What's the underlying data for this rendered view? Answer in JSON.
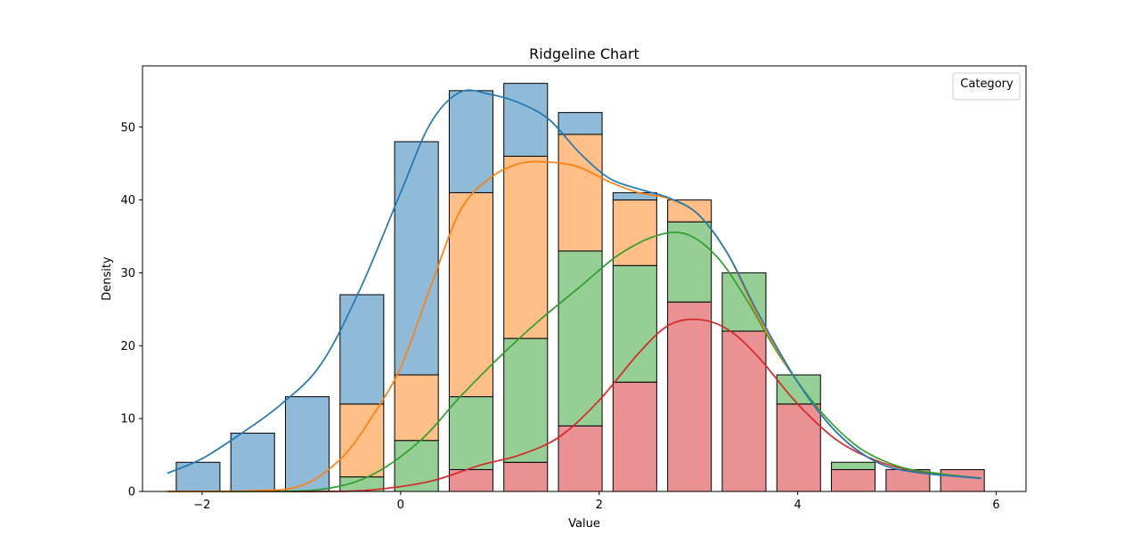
{
  "chart_data": {
    "type": "bar",
    "title": "Ridgeline Chart",
    "xlabel": "Value",
    "ylabel": "Density",
    "xlim": [
      -2.6,
      6.3
    ],
    "ylim": [
      0,
      58.4
    ],
    "xticks": [
      -2,
      0,
      2,
      4,
      6
    ],
    "xtick_labels": [
      "−2",
      "0",
      "2",
      "4",
      "6"
    ],
    "yticks": [
      0,
      10,
      20,
      30,
      40,
      50
    ],
    "ytick_labels": [
      "0",
      "10",
      "20",
      "30",
      "40",
      "50"
    ],
    "legend": {
      "title": "Category",
      "placement": "top-right",
      "entries": []
    },
    "grid": false,
    "stacked": true,
    "bins": {
      "centers": [
        -2.04,
        -1.49,
        -0.94,
        -0.39,
        0.16,
        0.71,
        1.26,
        1.81,
        2.36,
        2.91,
        3.46,
        4.01,
        4.56,
        5.11,
        5.66
      ],
      "width": 0.44
    },
    "series": [
      {
        "color": "#d62728",
        "fill": "#ea9293",
        "values": [
          0,
          0,
          0,
          0,
          0,
          3,
          4,
          9,
          15,
          26,
          22,
          12,
          3,
          3,
          3
        ]
      },
      {
        "color": "#2ca02c",
        "fill": "#95cf95",
        "values": [
          0,
          0,
          0,
          2,
          7,
          10,
          17,
          24,
          16,
          11,
          8,
          4,
          1,
          0,
          0
        ]
      },
      {
        "color": "#ff7f0e",
        "fill": "#ffbf86",
        "values": [
          0,
          0,
          0,
          10,
          9,
          28,
          25,
          16,
          9,
          3,
          0,
          0,
          0,
          0,
          0
        ]
      },
      {
        "color": "#1f77b4",
        "fill": "#8fbbd9",
        "values": [
          4,
          8,
          13,
          15,
          32,
          14,
          10,
          3,
          1,
          0,
          0,
          0,
          0,
          0,
          0
        ]
      }
    ],
    "kde_lines": [
      {
        "color": "#d62728",
        "x": [
          -2.35,
          -1.5,
          -0.8,
          -0.3,
          0.3,
          0.8,
          1.2,
          1.6,
          2.0,
          2.4,
          2.7,
          3.0,
          3.3,
          3.6,
          4.0,
          4.4,
          4.8,
          5.2,
          5.85
        ],
        "y": [
          0,
          0,
          0,
          0.2,
          1.4,
          3.6,
          5.0,
          7.5,
          12.5,
          19.0,
          22.8,
          23.6,
          22.2,
          18.5,
          12.0,
          7.0,
          4.2,
          2.8,
          1.8
        ]
      },
      {
        "color": "#2ca02c",
        "x": [
          -2.35,
          -1.5,
          -0.8,
          -0.3,
          0.2,
          0.6,
          1.0,
          1.4,
          1.8,
          2.2,
          2.6,
          2.9,
          3.2,
          3.5,
          3.8,
          4.2,
          4.6,
          5.0,
          5.4,
          5.85
        ],
        "y": [
          0,
          0,
          0.3,
          2.2,
          7.0,
          13.0,
          18.5,
          23.5,
          28.0,
          32.5,
          35.2,
          35.2,
          32.0,
          26.0,
          19.0,
          11.5,
          6.2,
          3.5,
          2.5,
          1.8
        ]
      },
      {
        "color": "#ff7f0e",
        "x": [
          -2.35,
          -1.5,
          -1.0,
          -0.6,
          -0.3,
          0.0,
          0.3,
          0.6,
          0.9,
          1.2,
          1.5,
          1.8,
          2.1,
          2.4,
          2.7,
          3.0,
          3.3,
          3.6,
          4.0,
          4.4,
          4.8,
          5.2,
          5.85
        ],
        "y": [
          0,
          0.1,
          0.8,
          4.5,
          10.0,
          17.0,
          28.0,
          38.5,
          43.0,
          45.0,
          45.2,
          44.5,
          42.5,
          41.0,
          40.2,
          38.0,
          32.5,
          24.0,
          15.0,
          8.0,
          4.0,
          2.6,
          1.8
        ]
      },
      {
        "color": "#1f77b4",
        "x": [
          -2.35,
          -2.0,
          -1.6,
          -1.2,
          -0.8,
          -0.4,
          0.0,
          0.3,
          0.6,
          0.9,
          1.2,
          1.5,
          1.8,
          2.1,
          2.4,
          2.7,
          3.0,
          3.3,
          3.6,
          4.0,
          4.4,
          4.8,
          5.2,
          5.85
        ],
        "y": [
          2.5,
          4.5,
          8.0,
          12.0,
          17.5,
          28.0,
          41.0,
          50.5,
          54.8,
          54.5,
          53.3,
          51.0,
          46.5,
          43.0,
          41.5,
          40.3,
          38.0,
          32.5,
          24.5,
          15.0,
          8.0,
          4.0,
          2.6,
          1.8
        ]
      }
    ]
  }
}
